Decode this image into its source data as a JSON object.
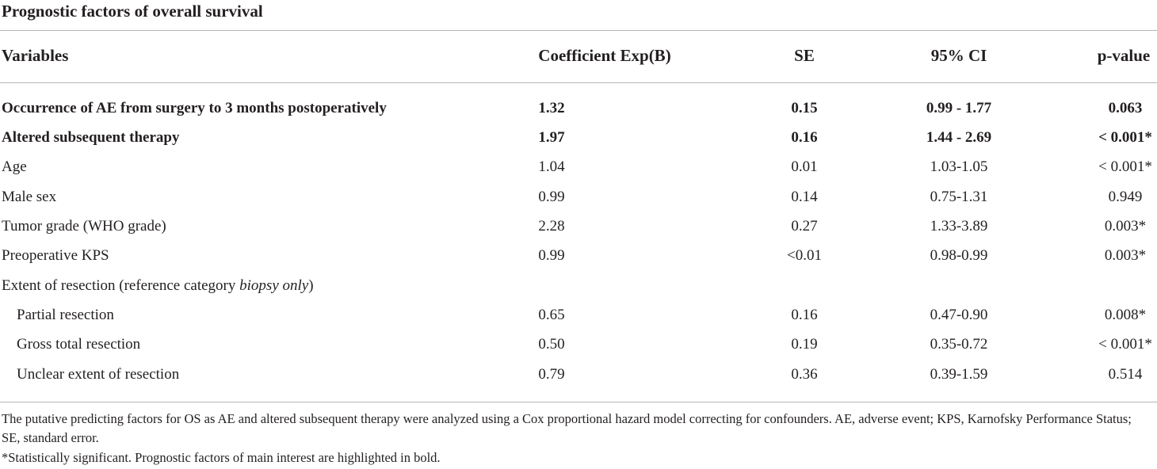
{
  "title": "Prognostic factors of overall survival",
  "headers": {
    "variables": "Variables",
    "coefficient": "Coefficient Exp(B)",
    "se": "SE",
    "ci": "95% CI",
    "p": "p-value"
  },
  "rows": [
    {
      "variable": "Occurrence of AE from surgery to 3 months postoperatively",
      "coefficient": "1.32",
      "se": "0.15",
      "ci": "0.99 - 1.77",
      "p": "0.063",
      "bold": true
    },
    {
      "variable": "Altered subsequent therapy",
      "coefficient": "1.97",
      "se": "0.16",
      "ci": "1.44 - 2.69",
      "p": "< 0.001*",
      "bold": true
    },
    {
      "variable": "Age",
      "coefficient": "1.04",
      "se": "0.01",
      "ci": "1.03-1.05",
      "p": "< 0.001*"
    },
    {
      "variable": "Male sex",
      "coefficient": "0.99",
      "se": "0.14",
      "ci": "0.75-1.31",
      "p": "0.949"
    },
    {
      "variable": "Tumor grade (WHO grade)",
      "coefficient": "2.28",
      "se": "0.27",
      "ci": "1.33-3.89",
      "p": "0.003*"
    },
    {
      "variable": "Preoperative KPS",
      "coefficient": "0.99",
      "se": "<0.01",
      "ci": "0.98-0.99",
      "p": "0.003*"
    },
    {
      "variable_prefix": "Extent of resection (reference category ",
      "variable_italic": "biopsy only",
      "variable_suffix": ")",
      "coefficient": "",
      "se": "",
      "ci": "",
      "p": ""
    },
    {
      "variable": "Partial resection",
      "coefficient": "0.65",
      "se": "0.16",
      "ci": "0.47-0.90",
      "p": "0.008*",
      "indent": true
    },
    {
      "variable": "Gross total resection",
      "coefficient": "0.50",
      "se": "0.19",
      "ci": "0.35-0.72",
      "p": "< 0.001*",
      "indent": true
    },
    {
      "variable": "Unclear extent of resection",
      "coefficient": "0.79",
      "se": "0.36",
      "ci": "0.39-1.59",
      "p": "0.514",
      "indent": true
    }
  ],
  "footnotes": {
    "note1": "The putative predicting factors for OS as AE and altered subsequent therapy were analyzed using a Cox proportional hazard model correcting for confounders. AE, adverse event; KPS, Karnofsky Performance Status; SE, standard error.",
    "note2": "*Statistically significant. Prognostic factors of main interest are highlighted in bold."
  }
}
